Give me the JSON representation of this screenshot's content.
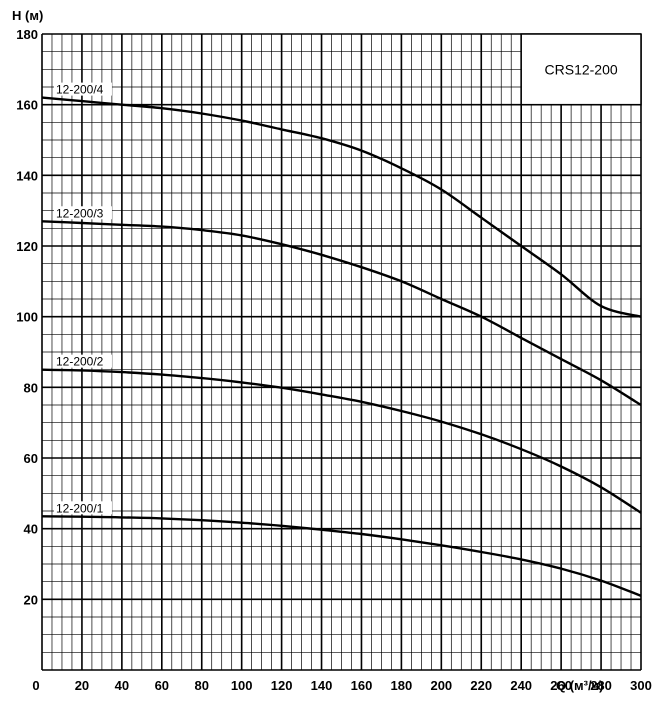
{
  "chart_data": {
    "type": "line",
    "model_label": "CRS12-200",
    "ylabel": "H (м)",
    "xlabel": "Q (м³/ч)",
    "xlim": [
      0,
      300
    ],
    "ylim": [
      0,
      180
    ],
    "x_major_ticks": [
      0,
      20,
      40,
      60,
      80,
      100,
      120,
      140,
      160,
      180,
      200,
      220,
      240,
      260,
      280,
      300
    ],
    "y_major_ticks": [
      20,
      40,
      60,
      80,
      100,
      120,
      140,
      160,
      180
    ],
    "x_minor_step": 5,
    "y_minor_step": 5,
    "grid": true,
    "series": [
      {
        "name": "12-200/4",
        "x": [
          0,
          20,
          40,
          60,
          80,
          100,
          120,
          140,
          160,
          180,
          200,
          220,
          240,
          260,
          280,
          300
        ],
        "y": [
          162,
          161,
          160,
          159,
          157.5,
          155.5,
          153,
          150.5,
          147,
          142,
          136,
          128,
          120,
          112,
          103,
          100
        ]
      },
      {
        "name": "12-200/3",
        "x": [
          0,
          20,
          40,
          60,
          80,
          100,
          120,
          140,
          160,
          180,
          200,
          220,
          240,
          260,
          280,
          300
        ],
        "y": [
          127,
          126.5,
          126,
          125.5,
          124.5,
          123,
          120.5,
          117.5,
          114,
          110,
          105,
          100,
          94,
          88,
          82,
          75
        ]
      },
      {
        "name": "12-200/2",
        "x": [
          0,
          20,
          40,
          60,
          80,
          100,
          120,
          140,
          160,
          180,
          200,
          220,
          240,
          260,
          280,
          300
        ],
        "y": [
          85,
          84.8,
          84.3,
          83.6,
          82.6,
          81.4,
          79.9,
          78,
          75.9,
          73.3,
          70.3,
          66.7,
          62.5,
          57.6,
          51.7,
          44.5
        ]
      },
      {
        "name": "12-200/1",
        "x": [
          0,
          20,
          40,
          60,
          80,
          100,
          120,
          140,
          160,
          180,
          200,
          220,
          240,
          260,
          280,
          300
        ],
        "y": [
          43.5,
          43.4,
          43.2,
          42.9,
          42.4,
          41.7,
          40.8,
          39.7,
          38.5,
          37,
          35.3,
          33.4,
          31.3,
          28.7,
          25.3,
          21
        ]
      }
    ]
  }
}
